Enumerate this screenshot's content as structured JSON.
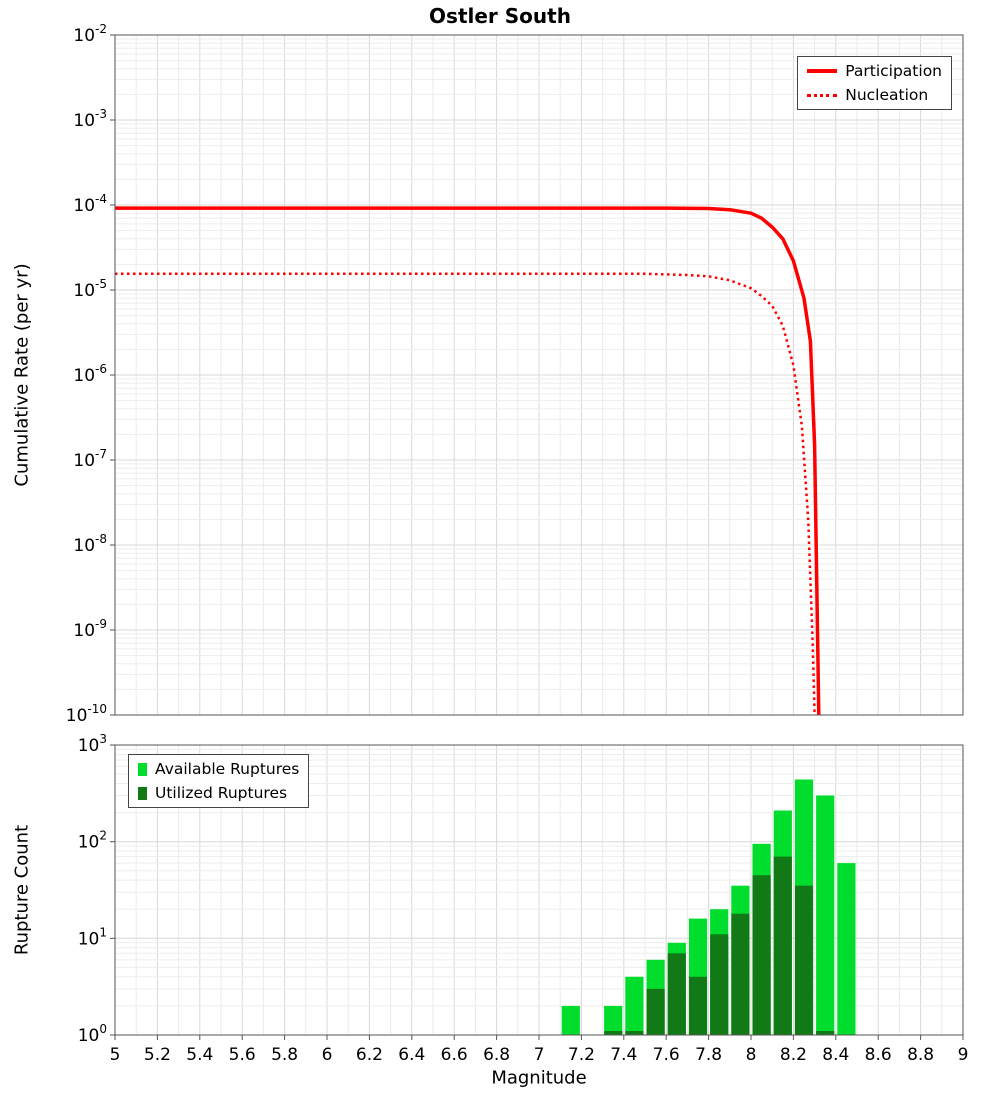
{
  "figure_title": "Ostler South",
  "chart_data": [
    {
      "type": "line",
      "title": "Ostler South",
      "xlabel": "Magnitude",
      "ylabel": "Cumulative Rate (per yr)",
      "x_range": [
        5,
        9
      ],
      "x_tick_step": 0.2,
      "y_scale": "log",
      "y_range_exp": [
        -10,
        -2
      ],
      "y_ticks": [
        -2,
        -3,
        -4,
        -5,
        -6,
        -7,
        -8,
        -9,
        -10
      ],
      "grid": true,
      "legend_position": "top-right",
      "series": [
        {
          "name": "Participation",
          "color": "#ff0000",
          "style": "solid",
          "line_width": 3.5,
          "points": [
            [
              5.0,
              9.2e-05
            ],
            [
              6.0,
              9.2e-05
            ],
            [
              7.0,
              9.2e-05
            ],
            [
              7.6,
              9.2e-05
            ],
            [
              7.8,
              9.1e-05
            ],
            [
              7.9,
              8.8e-05
            ],
            [
              8.0,
              8e-05
            ],
            [
              8.05,
              7e-05
            ],
            [
              8.1,
              5.5e-05
            ],
            [
              8.15,
              4e-05
            ],
            [
              8.2,
              2.2e-05
            ],
            [
              8.25,
              8e-06
            ],
            [
              8.28,
              2.5e-06
            ],
            [
              8.3,
              1.5e-07
            ],
            [
              8.31,
              4e-09
            ],
            [
              8.32,
              1e-10
            ]
          ]
        },
        {
          "name": "Nucleation",
          "color": "#ff0000",
          "style": "dotted",
          "line_width": 2.5,
          "points": [
            [
              5.0,
              1.55e-05
            ],
            [
              6.0,
              1.55e-05
            ],
            [
              7.0,
              1.55e-05
            ],
            [
              7.5,
              1.55e-05
            ],
            [
              7.7,
              1.5e-05
            ],
            [
              7.8,
              1.45e-05
            ],
            [
              7.9,
              1.3e-05
            ],
            [
              8.0,
              1.05e-05
            ],
            [
              8.05,
              8.5e-06
            ],
            [
              8.1,
              6.5e-06
            ],
            [
              8.15,
              3.8e-06
            ],
            [
              8.2,
              1.3e-06
            ],
            [
              8.24,
              2.5e-07
            ],
            [
              8.27,
              2e-08
            ],
            [
              8.29,
              8e-10
            ],
            [
              8.3,
              1e-10
            ]
          ]
        }
      ]
    },
    {
      "type": "bar",
      "xlabel": "Magnitude",
      "ylabel": "Rupture Count",
      "x_range": [
        5,
        9
      ],
      "x_tick_step": 0.2,
      "y_scale": "log",
      "y_range_exp": [
        0,
        3
      ],
      "y_ticks": [
        0,
        1,
        2,
        3
      ],
      "x_ticks": [
        "5",
        "5.2",
        "5.4",
        "5.6",
        "5.8",
        "6",
        "6.2",
        "6.4",
        "6.6",
        "6.8",
        "7",
        "7.2",
        "7.4",
        "7.6",
        "7.8",
        "8",
        "8.2",
        "8.4",
        "8.6",
        "8.8",
        "9"
      ],
      "bin_width": 0.1,
      "grid": true,
      "legend_position": "top-left",
      "series": [
        {
          "name": "Available Ruptures",
          "color": "#00dd2c",
          "bins": [
            7.15,
            7.35,
            7.45,
            7.55,
            7.65,
            7.75,
            7.85,
            7.95,
            8.05,
            8.15,
            8.25,
            8.35,
            8.45
          ],
          "values": [
            2,
            2,
            4,
            6,
            9,
            16,
            20,
            35,
            95,
            210,
            440,
            300,
            60
          ]
        },
        {
          "name": "Utilized Ruptures",
          "color": "#117a17",
          "bins": [
            7.15,
            7.35,
            7.45,
            7.55,
            7.65,
            7.75,
            7.85,
            7.95,
            8.05,
            8.15,
            8.25,
            8.35,
            8.45
          ],
          "values": [
            0,
            1,
            1,
            3,
            7,
            4,
            11,
            18,
            45,
            70,
            35,
            1,
            0
          ]
        }
      ]
    }
  ]
}
